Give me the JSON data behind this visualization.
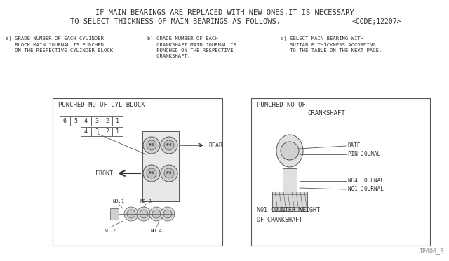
{
  "bg_color": "#ffffff",
  "title_line1": "IF MAIN BEARINGS ARE REPLACED WITH NEW ONES,IT IS NECESSARY",
  "title_line2": "TO SELECT THICKNESS OF MAIN BEARINGS AS FOLLOWS.",
  "title_code": "<CODE;12207>",
  "sub_a": "a) GRADE NUMBER OF EACH CYLINDER\n   BLOCK MAIN JOURNAL IS PUNCHED\n   ON THE RESPECTIVE CYLINDER BLOCK",
  "sub_b": "b) GRADE NUMBER OF EACH\n   CRANKSHAFT MAIN JOURNAL IS\n   PUNCHED ON THE RESPECTIVE\n   CRANKSHAFT.",
  "sub_c": "c) SELECT MAIN BEARING WITH\n   SUITABLE THICKNESS ACCORDING\n   TO THE TABLE ON THE NEXT PAGE.",
  "box1_title": "PUNCHED NO OF CYL-BLOCK",
  "box2_title1": "PUNCHED NO OF",
  "box2_title2": "CRANKSHAFT",
  "box2_labels": [
    "DATE",
    "PIN JOUNAL",
    "NO4 JOURNAL",
    "NO1 JOURNAL"
  ],
  "box2_bottom1": "NO1 COUNTER WEIGHT",
  "box2_bottom2": "OF CRANKSHAFT",
  "footer": ".JP000_S",
  "cyl_numbers_top": "654321",
  "cyl_numbers_bot": " 4321",
  "rear_label": "REAR",
  "front_label": "FRONT",
  "no1_label": "NO.1",
  "no3_label": "NO.3",
  "no2_label": "NO.2",
  "no4_label": "NO.4",
  "h6_label": "#6",
  "h4_label": "#4",
  "h5_label": "#5",
  "h3_label": "#3",
  "text_color": "#333333",
  "line_color": "#555555"
}
